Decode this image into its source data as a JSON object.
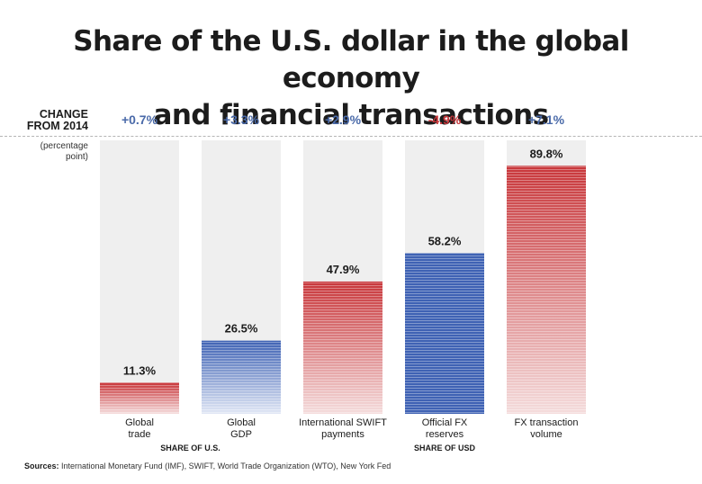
{
  "title_lines": [
    "Share of the U.S. dollar in the global economy",
    "and financial transactions"
  ],
  "change_header": [
    "CHANGE",
    "FROM 2014"
  ],
  "change_unit": [
    "(percentage",
    "point)"
  ],
  "colors": {
    "red": "#c8363a",
    "blue": "#3f62b4",
    "positive_text": "#4a6aa9",
    "negative_text": "#c8363a"
  },
  "chart_data": {
    "type": "bar",
    "categories": [
      [
        "Global",
        "trade"
      ],
      [
        "Global",
        "GDP"
      ],
      [
        "International SWIFT",
        "payments"
      ],
      [
        "Official FX",
        "reserves"
      ],
      [
        "FX transaction",
        "volume"
      ]
    ],
    "values": [
      11.3,
      26.5,
      47.9,
      58.2,
      89.8
    ],
    "value_labels": [
      "11.3%",
      "26.5%",
      "47.9%",
      "58.2%",
      "89.8%"
    ],
    "changes": [
      "+0.7%",
      "+3.3%",
      "+2.9%",
      "-4.9%",
      "+7.1%"
    ],
    "change_sign": [
      "positive",
      "positive",
      "positive",
      "negative",
      "positive"
    ],
    "bar_colors": [
      "red",
      "blue",
      "red",
      "blue",
      "red"
    ],
    "bar_fade": [
      true,
      true,
      true,
      false,
      true
    ],
    "groups": [
      {
        "label": "SHARE OF U.S.",
        "members": [
          0,
          1
        ]
      },
      {
        "label": "SHARE OF USD",
        "members": [
          2,
          3,
          4
        ]
      }
    ],
    "ylim": [
      0,
      100
    ],
    "grid": false
  },
  "source": {
    "label": "Sources:",
    "text": " International Monetary Fund (IMF), SWIFT, World Trade Organization (WTO), New York Fed"
  }
}
